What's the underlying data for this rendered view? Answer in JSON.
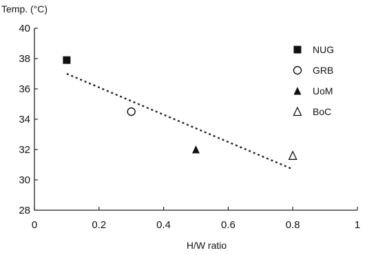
{
  "chart_data": {
    "type": "scatter",
    "ylabel": "Temp. (°C)",
    "xlabel": "H/W ratio",
    "xlim": [
      0,
      1
    ],
    "ylim": [
      28,
      40
    ],
    "x_ticks": [
      "0",
      "0.2",
      "0.4",
      "0.6",
      "0.8",
      "1"
    ],
    "y_ticks": [
      "28",
      "30",
      "32",
      "34",
      "36",
      "38",
      "40"
    ],
    "grid": false,
    "legend_position": "top-right",
    "series": [
      {
        "name": "NUG",
        "marker": "filled-square",
        "points": [
          {
            "x": 0.1,
            "y": 37.9
          }
        ]
      },
      {
        "name": "GRB",
        "marker": "open-circle",
        "points": [
          {
            "x": 0.3,
            "y": 34.5
          }
        ]
      },
      {
        "name": "UoM",
        "marker": "filled-triangle",
        "points": [
          {
            "x": 0.5,
            "y": 32.0
          }
        ]
      },
      {
        "name": "BoC",
        "marker": "open-triangle",
        "points": [
          {
            "x": 0.8,
            "y": 31.6
          }
        ]
      }
    ],
    "trendline": {
      "style": "dotted",
      "from": {
        "x": 0.1,
        "y": 37.0
      },
      "to": {
        "x": 0.8,
        "y": 30.7
      }
    }
  }
}
